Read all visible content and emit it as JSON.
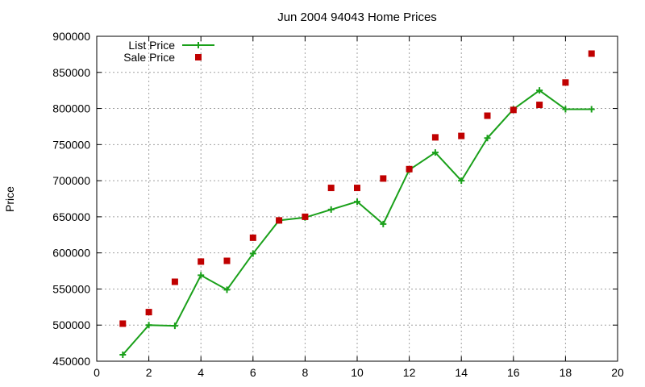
{
  "chart_data": {
    "type": "line",
    "title": "Jun 2004 94043 Home Prices",
    "xlabel": "",
    "ylabel": "Price",
    "xlim": [
      0,
      20
    ],
    "ylim": [
      450000,
      900000
    ],
    "x_ticks": [
      0,
      2,
      4,
      6,
      8,
      10,
      12,
      14,
      16,
      18,
      20
    ],
    "y_ticks": [
      450000,
      500000,
      550000,
      600000,
      650000,
      700000,
      750000,
      800000,
      850000,
      900000
    ],
    "grid": true,
    "legend_position": "top-left",
    "series": [
      {
        "name": "List Price",
        "style": "line-with-plus-markers",
        "color": "#1aa01a",
        "x": [
          1,
          2,
          3,
          4,
          5,
          6,
          7,
          8,
          9,
          10,
          11,
          12,
          13,
          14,
          15,
          16,
          17,
          18,
          19
        ],
        "values": [
          459000,
          500000,
          499000,
          569000,
          549000,
          599000,
          645000,
          649000,
          660000,
          671000,
          640000,
          715000,
          739000,
          700000,
          759000,
          799000,
          825000,
          799000,
          799000
        ]
      },
      {
        "name": "Sale Price",
        "style": "square-points",
        "color": "#c00000",
        "x": [
          1,
          2,
          3,
          4,
          5,
          6,
          7,
          8,
          9,
          10,
          11,
          12,
          13,
          14,
          15,
          16,
          17,
          18,
          19
        ],
        "values": [
          502000,
          518000,
          560000,
          588000,
          589000,
          621000,
          645000,
          650000,
          690000,
          690000,
          703000,
          716000,
          760000,
          762000,
          790000,
          798000,
          805000,
          836000,
          876000
        ]
      }
    ]
  }
}
